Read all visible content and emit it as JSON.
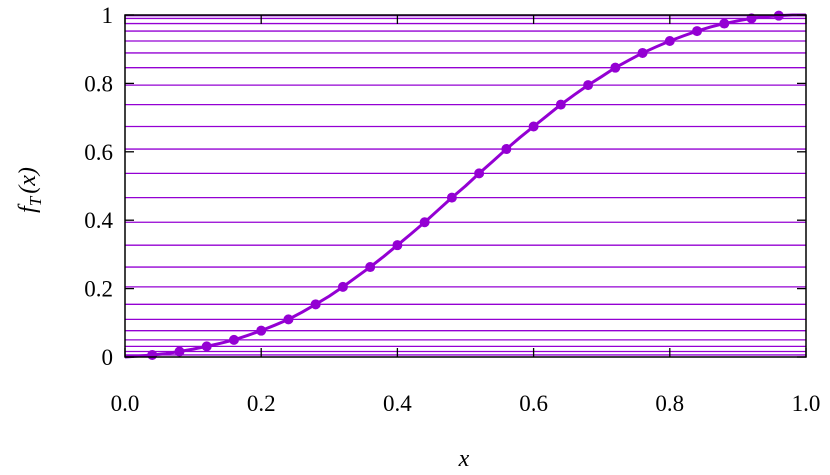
{
  "chart_data": {
    "type": "line",
    "title": "",
    "xlabel": "x",
    "ylabel": {
      "main": "f",
      "sub": "T",
      "arg": "(x)"
    },
    "xlim": [
      0.0,
      1.0
    ],
    "ylim": [
      0,
      1
    ],
    "x_ticks": [
      "0.0",
      "0.2",
      "0.4",
      "0.6",
      "0.8",
      "1.0"
    ],
    "y_ticks": [
      "0",
      "0.2",
      "0.4",
      "0.6",
      "0.8",
      "1"
    ],
    "grid": false,
    "legend": "none",
    "colors": {
      "series": "#9400D3",
      "axes": "#000000",
      "background": "#ffffff"
    },
    "curve": {
      "x": [
        0.0,
        0.02,
        0.04,
        0.06,
        0.08,
        0.1,
        0.12,
        0.14,
        0.16,
        0.18,
        0.2,
        0.22,
        0.24,
        0.26,
        0.28,
        0.3,
        0.32,
        0.34,
        0.36,
        0.38,
        0.4,
        0.42,
        0.44,
        0.46,
        0.48,
        0.5,
        0.52,
        0.54,
        0.56,
        0.58,
        0.6,
        0.62,
        0.64,
        0.66,
        0.68,
        0.7,
        0.72,
        0.74,
        0.76,
        0.78,
        0.8,
        0.82,
        0.84,
        0.86,
        0.88,
        0.9,
        0.92,
        0.94,
        0.96,
        0.98,
        1.0
      ],
      "y": [
        0.0,
        0.003,
        0.006,
        0.01,
        0.016,
        0.023,
        0.031,
        0.04,
        0.05,
        0.063,
        0.077,
        0.093,
        0.11,
        0.131,
        0.154,
        0.178,
        0.205,
        0.234,
        0.263,
        0.294,
        0.327,
        0.36,
        0.394,
        0.43,
        0.466,
        0.5,
        0.537,
        0.572,
        0.608,
        0.642,
        0.674,
        0.706,
        0.738,
        0.767,
        0.795,
        0.82,
        0.846,
        0.868,
        0.889,
        0.907,
        0.924,
        0.939,
        0.953,
        0.965,
        0.975,
        0.983,
        0.99,
        0.995,
        0.998,
        1.0,
        1.0
      ]
    },
    "points": {
      "x": [
        0.04,
        0.08,
        0.12,
        0.16,
        0.2,
        0.24,
        0.28,
        0.32,
        0.36,
        0.4,
        0.44,
        0.48,
        0.52,
        0.56,
        0.6,
        0.64,
        0.68,
        0.72,
        0.76,
        0.8,
        0.84,
        0.88,
        0.92,
        0.96
      ],
      "y": [
        0.006,
        0.016,
        0.031,
        0.05,
        0.077,
        0.11,
        0.154,
        0.205,
        0.263,
        0.327,
        0.394,
        0.466,
        0.537,
        0.608,
        0.674,
        0.738,
        0.795,
        0.846,
        0.889,
        0.924,
        0.953,
        0.975,
        0.99,
        0.998
      ]
    },
    "hlines_y": [
      0.006,
      0.016,
      0.031,
      0.05,
      0.077,
      0.11,
      0.154,
      0.205,
      0.263,
      0.327,
      0.394,
      0.466,
      0.537,
      0.608,
      0.674,
      0.738,
      0.795,
      0.846,
      0.889,
      0.924,
      0.953,
      0.975,
      0.99,
      0.998
    ]
  }
}
